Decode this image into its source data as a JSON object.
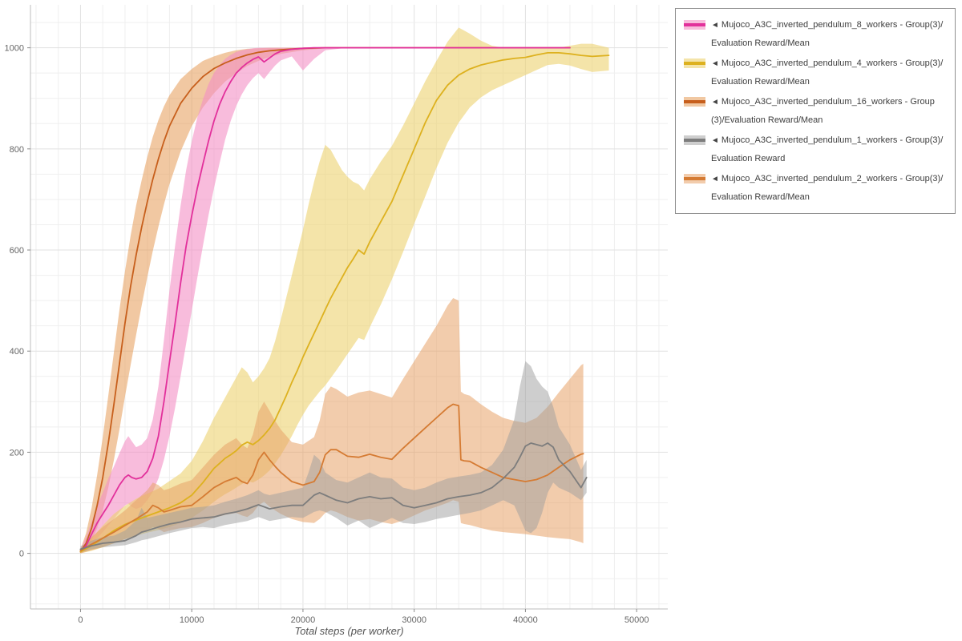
{
  "legend": {
    "marker": "◄",
    "border_color": "#8f8f8f",
    "position": "top-right"
  },
  "chart_data": {
    "type": "line",
    "title": "",
    "xlabel": "Total steps (per worker)",
    "ylabel": "",
    "xlim": [
      -4500,
      52800
    ],
    "ylim": [
      -110,
      1085
    ],
    "xticks": [
      0,
      10000,
      20000,
      30000,
      40000,
      50000
    ],
    "yticks": [
      0,
      200,
      400,
      600,
      800,
      1000
    ],
    "grid": {
      "on": true,
      "x_minor": 2000,
      "y_minor": 50,
      "x_major": 10000,
      "y_major": 200
    },
    "legend_position": "top-right",
    "series": [
      {
        "id": "pendulum-8-workers",
        "label": "Mujoco_A3C_inverted_pendulum_8_workers - Group(3)/Evaluation Reward/Mean",
        "color": "#e2309b",
        "band_color": "#f48fc5",
        "band_opacity": 0.6,
        "x": [
          0,
          500,
          1000,
          1500,
          2000,
          2500,
          3000,
          3500,
          4000,
          4300,
          4600,
          5000,
          5500,
          6000,
          6500,
          7000,
          7500,
          8000,
          8500,
          9000,
          9500,
          10000,
          10500,
          11000,
          11500,
          12000,
          12500,
          13000,
          13500,
          14000,
          14500,
          15000,
          15500,
          16000,
          16500,
          17000,
          17500,
          18000,
          19000,
          20000,
          21000,
          22000,
          24000,
          26000,
          28000,
          30000,
          32000,
          34000,
          36000,
          38000,
          40000,
          42000,
          44000
        ],
        "mean": [
          3,
          15,
          38,
          60,
          78,
          95,
          115,
          135,
          150,
          155,
          150,
          147,
          150,
          162,
          188,
          232,
          300,
          378,
          455,
          535,
          608,
          668,
          722,
          770,
          815,
          855,
          888,
          913,
          933,
          950,
          961,
          970,
          977,
          982,
          972,
          980,
          988,
          993,
          997,
          999,
          1000,
          1000,
          1000,
          1000,
          1000,
          1000,
          1000,
          1000,
          1000,
          1000,
          1000,
          1000,
          1000
        ],
        "lo": [
          0,
          5,
          18,
          30,
          42,
          55,
          68,
          82,
          95,
          98,
          92,
          88,
          92,
          105,
          122,
          148,
          185,
          232,
          288,
          350,
          415,
          480,
          545,
          608,
          668,
          722,
          772,
          818,
          855,
          885,
          908,
          926,
          940,
          950,
          938,
          952,
          965,
          975,
          983,
          955,
          978,
          995,
          1000,
          1000,
          1000,
          1000,
          1000,
          1000,
          1000,
          1000,
          1000,
          1000,
          1000
        ],
        "hi": [
          8,
          32,
          62,
          95,
          120,
          148,
          172,
          198,
          222,
          232,
          222,
          210,
          215,
          228,
          265,
          330,
          422,
          520,
          608,
          688,
          758,
          815,
          862,
          898,
          928,
          950,
          966,
          978,
          986,
          992,
          995,
          997,
          999,
          1000,
          1000,
          1000,
          1000,
          1000,
          1000,
          1000,
          1000,
          1000,
          1000,
          1000,
          1000,
          1000,
          1000,
          1000,
          1000,
          1000,
          1000,
          1000,
          1000
        ]
      },
      {
        "id": "pendulum-4-workers",
        "label": "Mujoco_A3C_inverted_pendulum_4_workers - Group(3)/Evaluation Reward/Mean",
        "color": "#ddb11f",
        "band_color": "#ecd26f",
        "band_opacity": 0.6,
        "x": [
          0,
          1000,
          2000,
          3000,
          4000,
          5000,
          6000,
          7000,
          8000,
          9000,
          10000,
          11000,
          12000,
          12500,
          13000,
          13500,
          14000,
          14500,
          15000,
          15500,
          16000,
          16500,
          17000,
          17500,
          18000,
          18500,
          19000,
          19500,
          20000,
          20500,
          21000,
          21500,
          22000,
          22500,
          23000,
          23500,
          24000,
          24500,
          25000,
          25500,
          26000,
          27000,
          28000,
          29000,
          30000,
          31000,
          32000,
          33000,
          34000,
          35000,
          36000,
          37000,
          38000,
          39000,
          40000,
          41000,
          42000,
          43000,
          44000,
          45000,
          46000,
          47500
        ],
        "mean": [
          3,
          15,
          30,
          45,
          57,
          66,
          74,
          82,
          90,
          100,
          115,
          140,
          168,
          178,
          188,
          195,
          203,
          214,
          220,
          215,
          223,
          234,
          247,
          264,
          288,
          312,
          338,
          362,
          388,
          412,
          435,
          458,
          482,
          505,
          525,
          545,
          565,
          582,
          600,
          592,
          616,
          656,
          696,
          748,
          800,
          852,
          896,
          926,
          946,
          958,
          966,
          971,
          976,
          979,
          981,
          986,
          990,
          990,
          988,
          985,
          983,
          985
        ],
        "lo": [
          0,
          5,
          12,
          20,
          28,
          35,
          41,
          46,
          52,
          60,
          70,
          85,
          102,
          110,
          117,
          123,
          130,
          137,
          143,
          140,
          146,
          154,
          164,
          178,
          194,
          212,
          232,
          254,
          274,
          292,
          306,
          320,
          332,
          347,
          362,
          378,
          394,
          410,
          426,
          422,
          447,
          492,
          542,
          596,
          652,
          706,
          762,
          812,
          852,
          882,
          902,
          916,
          926,
          936,
          946,
          956,
          966,
          968,
          965,
          958,
          952,
          955
        ],
        "hi": [
          8,
          30,
          55,
          78,
          94,
          108,
          118,
          128,
          143,
          158,
          183,
          222,
          268,
          288,
          308,
          328,
          348,
          368,
          358,
          338,
          350,
          366,
          386,
          420,
          462,
          506,
          550,
          596,
          640,
          690,
          735,
          775,
          808,
          798,
          778,
          758,
          745,
          735,
          730,
          718,
          740,
          775,
          806,
          846,
          890,
          934,
          974,
          1012,
          1040,
          1028,
          1014,
          1004,
          1000,
          1000,
          1000,
          1000,
          1000,
          1000,
          1004,
          1008,
          1008,
          1000
        ]
      },
      {
        "id": "pendulum-16-workers",
        "label": "Mujoco_A3C_inverted_pendulum_16_workers - Group(3)/Evaluation Reward/Mean",
        "color": "#c75f1c",
        "band_color": "#e69a55",
        "band_opacity": 0.55,
        "x": [
          0,
          500,
          1000,
          1500,
          2000,
          2500,
          3000,
          3500,
          4000,
          4500,
          5000,
          5500,
          6000,
          6500,
          7000,
          7500,
          8000,
          9000,
          10000,
          11000,
          12000,
          13000,
          14000,
          15000,
          16000,
          17000,
          18000,
          20000,
          22000,
          24000,
          26000,
          28000,
          30000,
          32000,
          34000,
          36000,
          38000,
          40000,
          42000,
          44000
        ],
        "mean": [
          3,
          20,
          50,
          95,
          150,
          218,
          295,
          375,
          455,
          528,
          590,
          645,
          695,
          740,
          780,
          815,
          845,
          890,
          920,
          943,
          959,
          970,
          979,
          986,
          991,
          994,
          996,
          999,
          1000,
          1000,
          1000,
          1000,
          1000,
          1000,
          1000,
          1000,
          1000,
          1000,
          1000,
          1000
        ],
        "lo": [
          0,
          8,
          25,
          50,
          85,
          130,
          185,
          245,
          310,
          372,
          432,
          490,
          546,
          598,
          646,
          690,
          730,
          795,
          845,
          882,
          910,
          933,
          950,
          964,
          974,
          982,
          988,
          995,
          999,
          1000,
          1000,
          1000,
          1000,
          1000,
          1000,
          1000,
          1000,
          1000,
          1000,
          1000
        ],
        "hi": [
          8,
          40,
          90,
          155,
          230,
          312,
          398,
          482,
          558,
          628,
          688,
          738,
          784,
          824,
          857,
          884,
          906,
          938,
          958,
          974,
          983,
          990,
          995,
          998,
          999,
          1000,
          1000,
          1000,
          1000,
          1000,
          1000,
          1000,
          1000,
          1000,
          1000,
          1000,
          1000,
          1000,
          1000,
          1000
        ]
      },
      {
        "id": "pendulum-1-workers",
        "label": "Mujoco_A3C_inverted_pendulum_1_workers - Group(3)/Evaluation Reward",
        "color": "#7d7d7d",
        "band_color": "#9e9e9e",
        "band_opacity": 0.5,
        "x": [
          0,
          1000,
          2000,
          3000,
          4000,
          5000,
          5500,
          6000,
          7000,
          8000,
          9000,
          10000,
          11000,
          12000,
          13000,
          14000,
          15000,
          15500,
          16000,
          16500,
          17000,
          18000,
          19000,
          20000,
          20500,
          21000,
          21500,
          22000,
          23000,
          24000,
          25000,
          26000,
          27000,
          28000,
          29000,
          30000,
          31000,
          32000,
          33000,
          34000,
          35000,
          36000,
          37000,
          38000,
          39000,
          39500,
          40000,
          40500,
          41000,
          41500,
          42000,
          42500,
          43000,
          44000,
          45000,
          45500
        ],
        "mean": [
          8,
          15,
          20,
          22,
          25,
          35,
          42,
          45,
          52,
          58,
          62,
          68,
          70,
          72,
          78,
          82,
          88,
          92,
          96,
          92,
          88,
          92,
          95,
          95,
          105,
          115,
          120,
          115,
          105,
          100,
          108,
          112,
          108,
          110,
          95,
          90,
          95,
          100,
          108,
          112,
          115,
          120,
          130,
          148,
          170,
          190,
          212,
          218,
          215,
          212,
          218,
          210,
          185,
          162,
          130,
          150
        ],
        "lo": [
          2,
          8,
          12,
          14,
          16,
          22,
          26,
          28,
          34,
          40,
          45,
          50,
          52,
          50,
          56,
          60,
          64,
          68,
          72,
          68,
          64,
          68,
          72,
          70,
          76,
          82,
          85,
          82,
          70,
          55,
          65,
          50,
          60,
          70,
          60,
          58,
          62,
          68,
          72,
          76,
          80,
          85,
          95,
          105,
          95,
          70,
          45,
          40,
          50,
          80,
          120,
          140,
          130,
          120,
          105,
          120
        ],
        "hi": [
          14,
          25,
          32,
          35,
          45,
          65,
          90,
          70,
          75,
          80,
          85,
          90,
          92,
          95,
          102,
          108,
          115,
          120,
          125,
          118,
          115,
          120,
          125,
          130,
          160,
          195,
          185,
          160,
          145,
          140,
          150,
          160,
          150,
          148,
          130,
          125,
          130,
          140,
          148,
          152,
          155,
          160,
          175,
          205,
          265,
          330,
          380,
          370,
          345,
          330,
          320,
          290,
          250,
          215,
          165,
          185
        ]
      },
      {
        "id": "pendulum-2-workers",
        "label": "Mujoco_A3C_inverted_pendulum_2_workers - Group(3)/Evaluation Reward/Mean",
        "color": "#d57b33",
        "band_color": "#e8a368",
        "band_opacity": 0.55,
        "x": [
          0,
          1000,
          2000,
          3000,
          4000,
          5000,
          6000,
          6500,
          7000,
          7500,
          8000,
          9000,
          10000,
          11000,
          12000,
          13000,
          14000,
          14500,
          15000,
          15500,
          16000,
          16500,
          17000,
          17500,
          18000,
          19000,
          20000,
          21000,
          21500,
          22000,
          22500,
          23000,
          24000,
          25000,
          26000,
          27000,
          28000,
          29000,
          30000,
          31000,
          32000,
          33000,
          33500,
          34000,
          34200,
          34500,
          35000,
          36000,
          37000,
          38000,
          39000,
          40000,
          41000,
          42000,
          43000,
          44000,
          45000,
          45200
        ],
        "mean": [
          5,
          18,
          30,
          42,
          55,
          68,
          82,
          95,
          90,
          82,
          85,
          92,
          95,
          112,
          130,
          142,
          150,
          142,
          138,
          155,
          185,
          200,
          185,
          172,
          160,
          142,
          135,
          142,
          160,
          195,
          205,
          205,
          192,
          190,
          196,
          190,
          186,
          208,
          228,
          248,
          268,
          288,
          295,
          292,
          185,
          183,
          182,
          170,
          160,
          150,
          146,
          142,
          146,
          155,
          170,
          185,
          196,
          197
        ],
        "lo": [
          0,
          6,
          12,
          20,
          28,
          36,
          45,
          52,
          48,
          42,
          45,
          50,
          52,
          60,
          70,
          76,
          80,
          75,
          72,
          80,
          95,
          102,
          92,
          85,
          78,
          68,
          62,
          60,
          68,
          80,
          85,
          82,
          72,
          65,
          68,
          62,
          58,
          65,
          75,
          85,
          92,
          100,
          105,
          102,
          60,
          58,
          56,
          50,
          45,
          42,
          40,
          38,
          35,
          32,
          30,
          28,
          22,
          20
        ],
        "hi": [
          10,
          32,
          52,
          68,
          85,
          105,
          125,
          140,
          135,
          125,
          128,
          138,
          145,
          170,
          195,
          215,
          228,
          215,
          208,
          235,
          280,
          300,
          282,
          262,
          245,
          220,
          215,
          230,
          262,
          315,
          330,
          325,
          310,
          318,
          322,
          315,
          308,
          345,
          380,
          415,
          450,
          490,
          505,
          500,
          320,
          315,
          312,
          295,
          280,
          268,
          262,
          258,
          268,
          290,
          318,
          345,
          372,
          375
        ]
      }
    ]
  }
}
